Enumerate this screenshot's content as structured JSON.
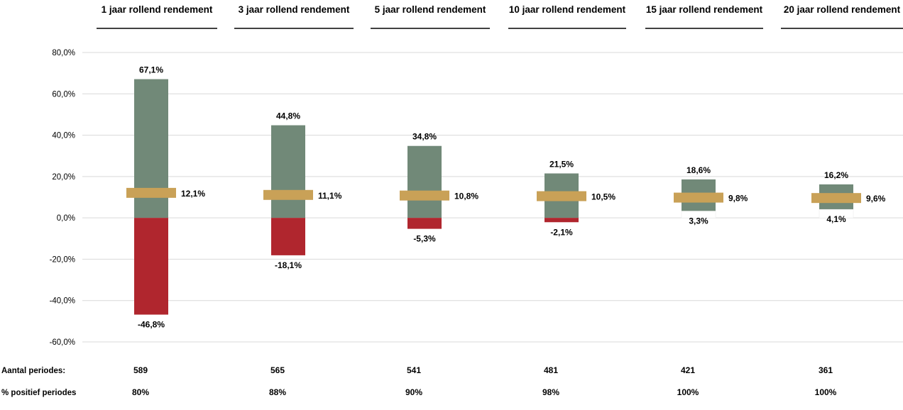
{
  "chart_data": {
    "type": "bar",
    "categories": [
      "1 jaar rollend rendement",
      "3 jaar rollend rendement",
      "5 jaar rollend rendement",
      "10 jaar rollend rendement",
      "15 jaar rollend rendement",
      "20 jaar rollend rendement"
    ],
    "series": [
      {
        "values": [
          67.1,
          44.8,
          34.8,
          21.5,
          18.6,
          16.2
        ]
      },
      {
        "values": [
          -46.8,
          -18.1,
          -5.3,
          -2.1,
          3.3,
          4.1
        ]
      },
      {
        "values": [
          12.1,
          11.1,
          10.8,
          10.5,
          9.8,
          9.6
        ]
      }
    ],
    "max_labels": [
      "67,1%",
      "44,8%",
      "34,8%",
      "21,5%",
      "18,6%",
      "16,2%"
    ],
    "min_labels": [
      "-46,8%",
      "-18,1%",
      "-5,3%",
      "-2,1%",
      "3,3%",
      "4,1%"
    ],
    "avg_labels": [
      "12,1%",
      "11,1%",
      "10,8%",
      "10,5%",
      "9,8%",
      "9,6%"
    ],
    "ylim": [
      -60,
      80
    ],
    "yticks": [
      80,
      60,
      40,
      20,
      0,
      -20,
      -40,
      -60
    ],
    "ytick_labels": [
      "80,0%",
      "60,0%",
      "40,0%",
      "20,0%",
      "0,0%",
      "-20,0%",
      "-40,0%",
      "-60,0%"
    ],
    "grid": true,
    "legend": "none",
    "colors": {
      "positive": "#718978",
      "negative": "#b0262e",
      "average": "#c9a157",
      "grid": "#d9d9d9"
    }
  },
  "table": {
    "rows": [
      {
        "label": "Aantal periodes:",
        "values": [
          "589",
          "565",
          "541",
          "481",
          "421",
          "361"
        ]
      },
      {
        "label": "% positief periodes",
        "values": [
          "80%",
          "88%",
          "90%",
          "98%",
          "100%",
          "100%"
        ]
      }
    ]
  }
}
